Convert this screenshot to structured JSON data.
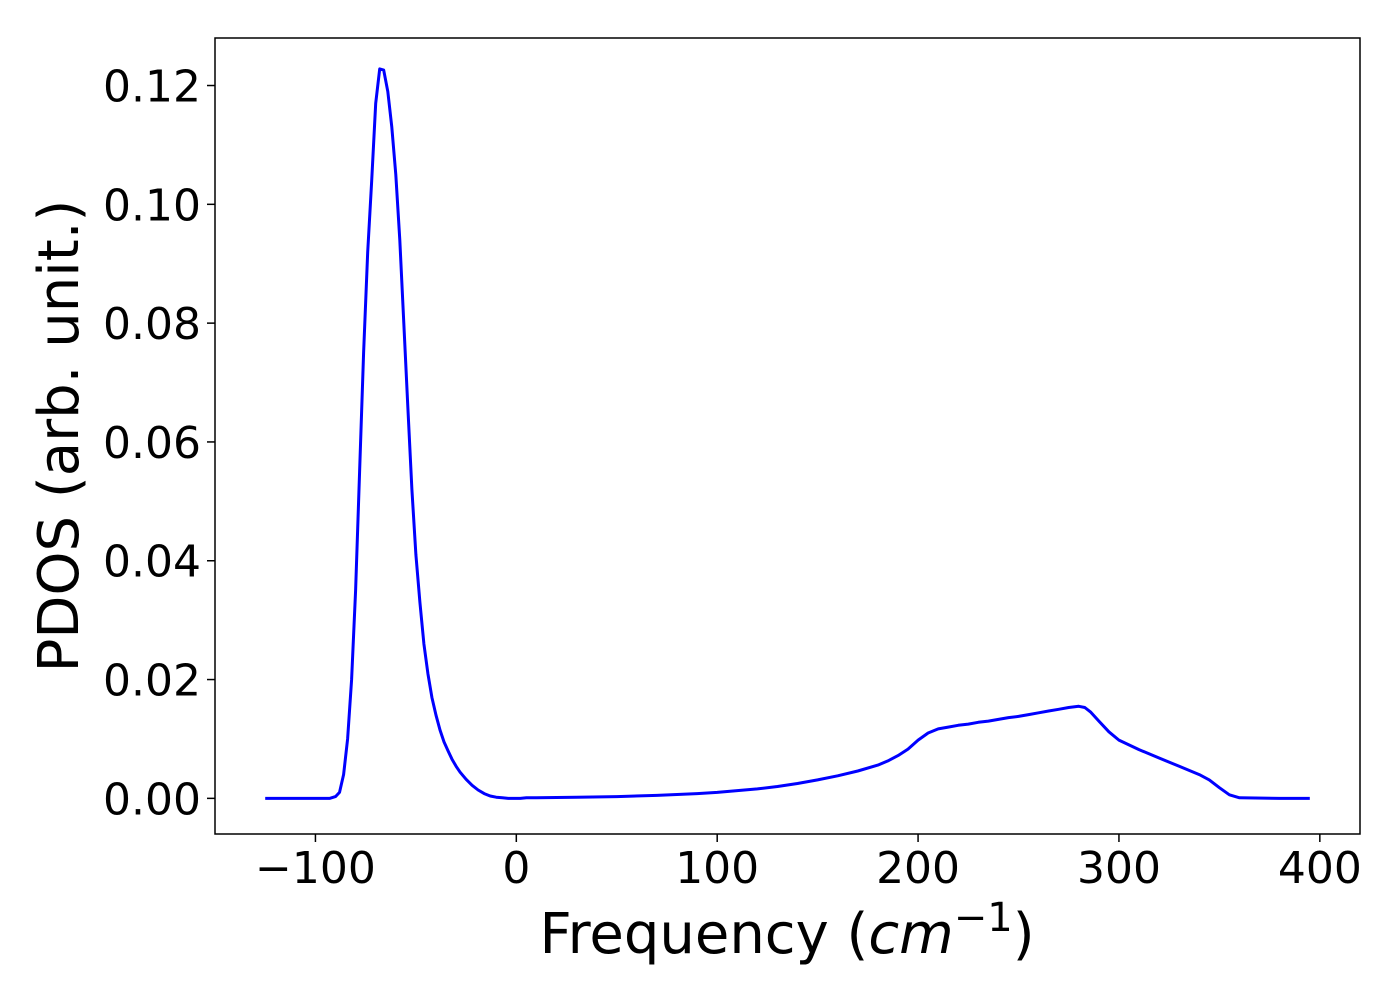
{
  "chart_data": {
    "type": "line",
    "title": "",
    "xlabel_prefix": "Frequency (",
    "xlabel_unit": "cm",
    "xlabel_exponent": "−1",
    "xlabel_suffix": ")",
    "ylabel": "PDOS (arb. unit.)",
    "xlim": [
      -150,
      420
    ],
    "ylim": [
      -0.006,
      0.128
    ],
    "x_ticks": [
      -100,
      0,
      100,
      200,
      300,
      400
    ],
    "x_tick_labels": [
      "−100",
      "0",
      "100",
      "200",
      "300",
      "400"
    ],
    "y_ticks": [
      0.0,
      0.02,
      0.04,
      0.06,
      0.08,
      0.1,
      0.12
    ],
    "y_tick_labels": [
      "0.00",
      "0.02",
      "0.04",
      "0.06",
      "0.08",
      "0.10",
      "0.12"
    ],
    "grid": false,
    "line_color": "#0000ff",
    "series": [
      {
        "x": [
          -125,
          -100,
          -93,
          -90,
          -88,
          -86,
          -84,
          -82,
          -80,
          -78,
          -76,
          -74,
          -72,
          -70,
          -68,
          -66,
          -64,
          -62,
          -60,
          -58,
          -56,
          -54,
          -52,
          -50,
          -48,
          -46,
          -44,
          -42,
          -40,
          -38,
          -36,
          -34,
          -32,
          -30,
          -28,
          -25,
          -22,
          -19,
          -16,
          -13,
          -10,
          -7,
          -4,
          -1,
          2,
          5,
          10,
          30,
          50,
          70,
          90,
          100,
          110,
          120,
          130,
          140,
          150,
          160,
          170,
          180,
          185,
          190,
          195,
          200,
          205,
          210,
          215,
          220,
          225,
          230,
          235,
          240,
          245,
          250,
          255,
          260,
          265,
          270,
          275,
          280,
          283,
          286,
          290,
          295,
          300,
          310,
          320,
          330,
          340,
          345,
          350,
          355,
          360,
          380,
          395
        ],
        "y": [
          0.0,
          0.0,
          0.0,
          0.0003,
          0.001,
          0.004,
          0.01,
          0.02,
          0.035,
          0.055,
          0.075,
          0.092,
          0.104,
          0.117,
          0.1228,
          0.1226,
          0.119,
          0.113,
          0.105,
          0.094,
          0.08,
          0.066,
          0.052,
          0.041,
          0.033,
          0.026,
          0.021,
          0.017,
          0.014,
          0.0115,
          0.0095,
          0.008,
          0.0066,
          0.0054,
          0.0044,
          0.0032,
          0.0022,
          0.0014,
          0.0008,
          0.0004,
          0.0002,
          0.0001,
          0.0,
          0.0,
          0.0,
          0.0001,
          0.0001,
          0.0002,
          0.0003,
          0.0005,
          0.0008,
          0.001,
          0.0013,
          0.0016,
          0.002,
          0.0025,
          0.0031,
          0.0038,
          0.0046,
          0.0056,
          0.0063,
          0.0072,
          0.0083,
          0.0098,
          0.011,
          0.0117,
          0.012,
          0.0123,
          0.0125,
          0.0128,
          0.013,
          0.0133,
          0.0136,
          0.0138,
          0.0141,
          0.0144,
          0.0147,
          0.015,
          0.0153,
          0.0155,
          0.0153,
          0.0145,
          0.013,
          0.0112,
          0.0098,
          0.0082,
          0.0068,
          0.0054,
          0.004,
          0.0031,
          0.0018,
          0.0006,
          0.0001,
          0.0,
          0.0
        ]
      }
    ]
  }
}
